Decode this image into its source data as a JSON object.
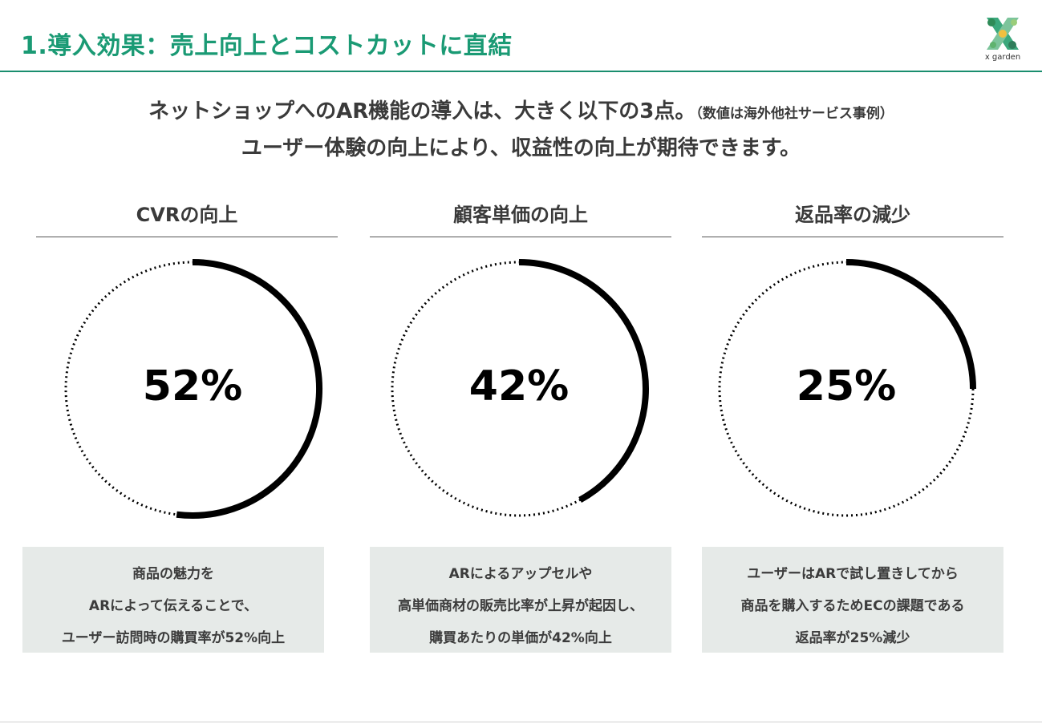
{
  "slide": {
    "title": "1.導入効果：売上向上とコストカットに直結",
    "logo_text": "x garden"
  },
  "lead": {
    "line1": "ネットショップへのAR機能の導入は、大きく以下の3点。",
    "note": "（数値は海外他社サービス事例）",
    "line2": "ユーザー体験の向上により、収益性の向上が期待できます。"
  },
  "metrics": [
    {
      "title": "CVRの向上",
      "value_label": "52%",
      "fraction": 0.52,
      "desc": [
        "商品の魅力を",
        "ARによって伝えることで、",
        "ユーザー訪問時の購買率が52%向上"
      ]
    },
    {
      "title": "顧客単価の向上",
      "value_label": "42%",
      "fraction": 0.42,
      "desc": [
        "ARによるアップセルや",
        "高単価商材の販売比率が上昇が起因し、",
        "購買あたりの単価が42%向上"
      ]
    },
    {
      "title": "返品率の減少",
      "value_label": "25%",
      "fraction": 0.25,
      "desc": [
        "ユーザーはARで試し置きしてから",
        "商品を購入するためECの課題である",
        "返品率が25%減少"
      ]
    }
  ],
  "colors": {
    "accent": "#1a9a74",
    "gauge_fill": "#000000",
    "desc_bg": "#e6eae8"
  }
}
